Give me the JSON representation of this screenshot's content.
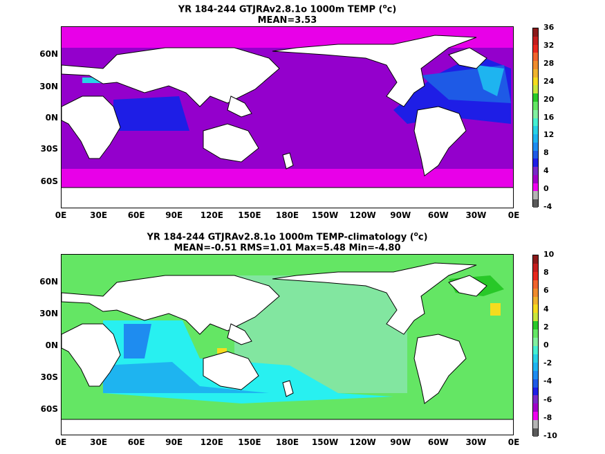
{
  "panels": [
    {
      "title_line1": "YR 184-244 GTJRAv2.8.1o 1000m TEMP (",
      "title_sup": "o",
      "title_unit": "c)",
      "title_line2": "MEAN=3.53",
      "lat_labels": [
        "60N",
        "30N",
        "0N",
        "30S",
        "60S"
      ],
      "lon_labels": [
        "0E",
        "30E",
        "60E",
        "90E",
        "120E",
        "150E",
        "180E",
        "150W",
        "120W",
        "90W",
        "60W",
        "30W",
        "0E"
      ],
      "colorbar_labels": [
        "36",
        "32",
        "28",
        "24",
        "20",
        "16",
        "12",
        "8",
        "4",
        "0",
        "-4"
      ],
      "colorbar_colors": [
        "#8b1a1a",
        "#c41e1e",
        "#e8281e",
        "#f0642d",
        "#f08c2d",
        "#f0b42d",
        "#f5dc1e",
        "#c8e63c",
        "#28c828",
        "#64e664",
        "#82f0a0",
        "#46f0d2",
        "#28d2e6",
        "#1eb4f0",
        "#1e8cf0",
        "#1e5ae6",
        "#1e1ee6",
        "#7828c8",
        "#a000c8",
        "#f000f0",
        "#b4b4b4",
        "#5a5a5a"
      ]
    },
    {
      "title_line1": "YR 184-244 GTJRAv2.8.1o 1000m TEMP-climatology (",
      "title_sup": "o",
      "title_unit": "c)",
      "title_line2": "MEAN=-0.51   RMS=1.01   Max=5.48   Min=-4.80",
      "lat_labels": [
        "60N",
        "30N",
        "0N",
        "30S",
        "60S"
      ],
      "lon_labels": [
        "0E",
        "30E",
        "60E",
        "90E",
        "120E",
        "150E",
        "180E",
        "150W",
        "120W",
        "90W",
        "60W",
        "30W",
        "0E"
      ],
      "colorbar_labels": [
        "10",
        "8",
        "6",
        "4",
        "2",
        "0",
        "-2",
        "-4",
        "-6",
        "-8",
        "-10"
      ],
      "colorbar_colors": [
        "#8b1a1a",
        "#c41e1e",
        "#e8281e",
        "#f0642d",
        "#f08c2d",
        "#f0b42d",
        "#f5dc1e",
        "#c8e63c",
        "#28c828",
        "#64e664",
        "#82f0a0",
        "#46f0d2",
        "#28d2e6",
        "#1eb4f0",
        "#1e8cf0",
        "#1e5ae6",
        "#1e1ee6",
        "#7828c8",
        "#a000c8",
        "#f000f0",
        "#b4b4b4",
        "#5a5a5a"
      ]
    }
  ]
}
